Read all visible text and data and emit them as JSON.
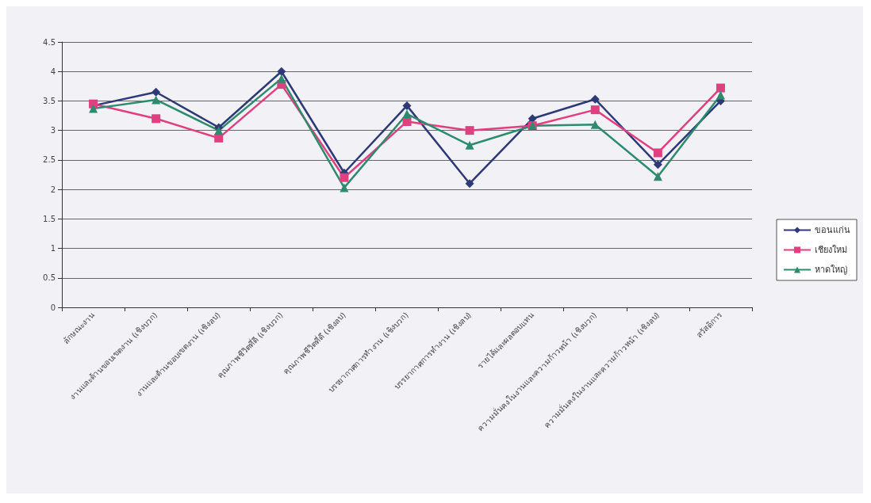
{
  "chart_data": {
    "type": "line",
    "categories": [
      "ลักษณะงาน",
      "งานและด้านขอบเขตงาน (เชิงบวก)",
      "งานและด้านขอบเขตงาน (เชิงลบ)",
      "คุณภาพชีวิตที่ดี (เชิงบวก)",
      "คุณภาพชีวิตที่ดี (เชิงลบ)",
      "บรรยากาศการทำงาน (เชิงบวก)",
      "บรรยากาศการทำงาน (เชิงลบ)",
      "รายได้และผลตอบแทน",
      "ความมั่นคงในงานและความก้าวหน้า (เชิงบวก)",
      "ความมั่นคงในงานและความก้าวหน้า (เชิงลบ)",
      "สวัสดิการ"
    ],
    "series": [
      {
        "name": "ขอนแก่น",
        "color": "#2e3a78",
        "marker": "diamond",
        "values": [
          3.42,
          3.65,
          3.05,
          4.0,
          2.28,
          3.42,
          2.1,
          3.2,
          3.53,
          2.42,
          3.5
        ]
      },
      {
        "name": "เชียงใหม่",
        "color": "#e0407f",
        "marker": "square",
        "values": [
          3.45,
          3.2,
          2.87,
          3.78,
          2.2,
          3.15,
          3.0,
          3.08,
          3.35,
          2.62,
          3.72
        ]
      },
      {
        "name": "หาดใหญ่",
        "color": "#2e8b6e",
        "marker": "triangle",
        "values": [
          3.37,
          3.52,
          3.0,
          3.88,
          2.03,
          3.28,
          2.75,
          3.08,
          3.1,
          2.22,
          3.6
        ]
      }
    ],
    "ylim": [
      0,
      4.5
    ],
    "yticks": [
      0,
      0.5,
      1,
      1.5,
      2,
      2.5,
      3,
      3.5,
      4,
      4.5
    ],
    "grid": "y",
    "legend": "right"
  }
}
